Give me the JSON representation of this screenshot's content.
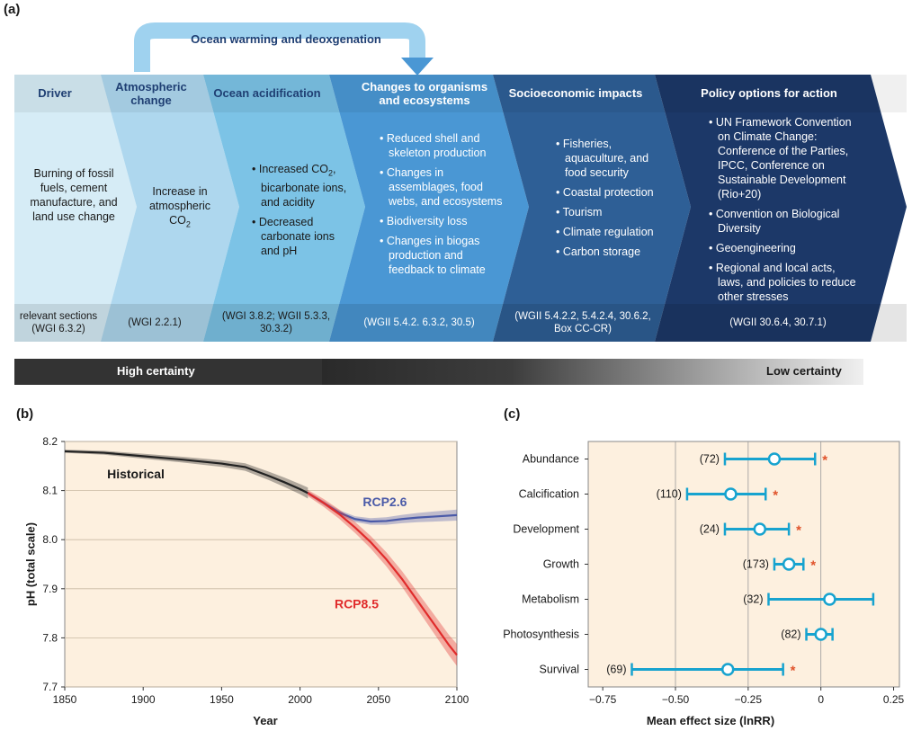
{
  "panel_a": {
    "label": "(a)",
    "arrow_label": "Ocean warming and deoxgenation",
    "columns": [
      {
        "header": "Driver",
        "body_text": "Burning of fossil fuels, cement manufacture, and land use change",
        "ref": "relevant sections (WGI 6.3.2)"
      },
      {
        "header": "Atmospheric change",
        "body_text": "Increase in atmospheric CO",
        "body_sub": "2",
        "ref": "(WGI 2.2.1)"
      },
      {
        "header": "Ocean acidification",
        "bullets": [
          "Increased CO",
          "bicarbonate ions, and acidity",
          "Decreased carbonate ions and pH"
        ],
        "bullet_sub": "2",
        "ref": "(WGI 3.8.2; WGII 5.3.3, 30.3.2)"
      },
      {
        "header": "Changes to organisms and ecosystems",
        "bullets": [
          "Reduced shell and skeleton production",
          "Changes in assemblages, food webs, and ecosystems",
          "Biodiversity loss",
          "Changes in biogas production and feedback to climate"
        ],
        "ref": "(WGII 5.4.2. 6.3.2, 30.5)"
      },
      {
        "header": "Socioeconomic impacts",
        "bullets": [
          "Fisheries, aquaculture, and food security",
          "Coastal protection",
          "Tourism",
          "Climate regulation",
          "Carbon storage"
        ],
        "ref": "(WGII 5.4.2.2, 5.4.2.4, 30.6.2, Box CC-CR)"
      },
      {
        "header": "Policy options for action",
        "bullets": [
          "UN Framework Convention on Climate Change: Conference of the Parties, IPCC, Conference on Sustainable Development (Rio+20)",
          "Convention on Biological Diversity",
          "Geoengineering",
          "Regional and local acts, laws, and policies to reduce other stresses"
        ],
        "ref": "(WGII 30.6.4, 30.7.1)"
      }
    ],
    "certainty_high": "High certainty",
    "certainty_low": "Low certainty"
  },
  "panel_b": {
    "label": "(b)"
  },
  "panel_c": {
    "label": "(c)"
  },
  "colors": {
    "driver": "#d6ecf6",
    "atmos": "#aed7ee",
    "acid": "#7cc3e6",
    "organisms": "#4a97d4",
    "socio": "#2e5f96",
    "policy": "#1c3868",
    "hist_line": "#222222",
    "rcp26": "#4a5aa8",
    "rcp85": "#e02b2b",
    "bg_panel": "#fdf0df",
    "effect": "#17a3cf",
    "star": "#e0522a"
  },
  "chart_data": [
    {
      "type": "line",
      "xlabel": "Year",
      "ylabel": "pH (total scale)",
      "xlim": [
        1850,
        2100
      ],
      "ylim": [
        7.7,
        8.2
      ],
      "xticks": [
        "1850",
        "1900",
        "1950",
        "2000",
        "2050",
        "2100"
      ],
      "yticks": [
        "7.7",
        "7.8",
        "7.9",
        "8.0",
        "8.1",
        "8.2"
      ],
      "grid": "horizontal",
      "series": [
        {
          "name": "Historical",
          "x": [
            1850,
            1875,
            1900,
            1925,
            1950,
            1965,
            1980,
            1990,
            2000,
            2005
          ],
          "y": [
            8.18,
            8.177,
            8.17,
            8.163,
            8.155,
            8.148,
            8.13,
            8.117,
            8.103,
            8.095
          ]
        },
        {
          "name": "RCP2.6",
          "x": [
            2005,
            2015,
            2025,
            2035,
            2045,
            2055,
            2065,
            2075,
            2085,
            2100
          ],
          "y": [
            8.095,
            8.075,
            8.055,
            8.042,
            8.037,
            8.038,
            8.042,
            8.045,
            8.047,
            8.05
          ]
        },
        {
          "name": "RCP8.5",
          "x": [
            2005,
            2015,
            2025,
            2035,
            2045,
            2055,
            2065,
            2075,
            2085,
            2095,
            2100
          ],
          "y": [
            8.095,
            8.075,
            8.052,
            8.025,
            7.995,
            7.96,
            7.92,
            7.875,
            7.83,
            7.785,
            7.765
          ]
        }
      ]
    },
    {
      "type": "scatter",
      "xlabel": "Mean effect size (lnRR)",
      "xlim": [
        -0.8,
        0.27
      ],
      "xticks": [
        "−0.75",
        "−0.50",
        "−0.25",
        "0",
        "0.25"
      ],
      "xtick_values": [
        -0.75,
        -0.5,
        -0.25,
        0,
        0.25
      ],
      "categories": [
        "Abundance",
        "Calcification",
        "Development",
        "Growth",
        "Metabolism",
        "Photosynthesis",
        "Survival"
      ],
      "counts": [
        "(72)",
        "(110)",
        "(24)",
        "(173)",
        "(32)",
        "(82)",
        "(69)"
      ],
      "means": [
        -0.16,
        -0.31,
        -0.21,
        -0.11,
        0.03,
        0.0,
        -0.32
      ],
      "ci_low": [
        -0.33,
        -0.46,
        -0.33,
        -0.16,
        -0.18,
        -0.05,
        -0.65
      ],
      "ci_high": [
        -0.02,
        -0.19,
        -0.11,
        -0.06,
        0.18,
        0.04,
        -0.13
      ],
      "significant": [
        true,
        true,
        true,
        true,
        false,
        false,
        true
      ],
      "star_symbol": "*"
    }
  ]
}
